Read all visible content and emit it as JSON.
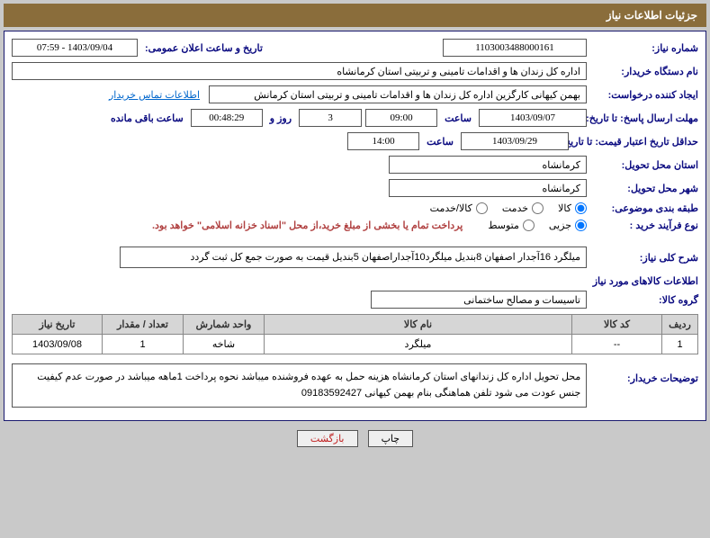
{
  "header": {
    "title": "جزئیات اطلاعات نیاز"
  },
  "fields": {
    "need_no_label": "شماره نیاز:",
    "need_no": "1103003488000161",
    "announce_label": "تاریخ و ساعت اعلان عمومی:",
    "announce_val": "1403/09/04 - 07:59",
    "buyer_label": "نام دستگاه خریدار:",
    "buyer_val": "اداره کل زندان ها و اقدامات تامینی و تربیتی استان کرمانشاه",
    "creator_label": "ایجاد کننده درخواست:",
    "creator_val": "بهمن کیهانی کارگزین اداره کل زندان ها و اقدامات تامینی و تربیتی استان کرمانش",
    "contact_link": "اطلاعات تماس خریدار",
    "resp_deadline_label": "مهلت ارسال پاسخ: تا تاریخ:",
    "resp_date": "1403/09/07",
    "time_label": "ساعت",
    "resp_time": "09:00",
    "days_val": "3",
    "days_and": "روز و",
    "remain_time": "00:48:29",
    "remain_label": "ساعت باقی مانده",
    "price_validity_label": "حداقل تاریخ اعتبار قیمت: تا تاریخ:",
    "price_date": "1403/09/29",
    "price_time": "14:00",
    "province_label": "استان محل تحویل:",
    "province_val": "کرمانشاه",
    "city_label": "شهر محل تحویل:",
    "city_val": "کرمانشاه",
    "category_label": "طبقه بندی موضوعی:",
    "cat_goods": "کالا",
    "cat_service": "خدمت",
    "cat_both": "کالا/خدمت",
    "process_label": "نوع فرآیند خرید :",
    "proc_small": "جزیی",
    "proc_medium": "متوسط",
    "payment_note": "پرداخت تمام یا بخشی از مبلغ خرید،از محل \"اسناد خزانه اسلامی\" خواهد بود.",
    "overview_label": "شرح کلی نیاز:",
    "overview_val": "میلگرد 16آجدار اصفهان 8بندیل میلگرد10آجداراصفهان 5بندیل قیمت به صورت جمع کل ثبت گردد",
    "items_section": "اطلاعات کالاهای مورد نیاز",
    "group_label": "گروه کالا:",
    "group_val": "تاسیسات و مصالح ساختمانی",
    "buyer_notes_label": "توضیحات خریدار:",
    "buyer_notes_val": "محل تحویل اداره کل زندانهای استان کرمانشاه هزینه حمل به عهده فروشنده میباشد نحوه پرداخت 1ماهه میباشد در صورت عدم کیفیت جنس عودت می شود تلفن هماهنگی بنام بهمن کیهانی  09183592427"
  },
  "table": {
    "headers": {
      "row": "ردیف",
      "code": "کد کالا",
      "name": "نام کالا",
      "unit": "واحد شمارش",
      "qty": "تعداد / مقدار",
      "date": "تاریخ نیاز"
    },
    "rows": [
      {
        "row": "1",
        "code": "--",
        "name": "میلگرد",
        "unit": "شاخه",
        "qty": "1",
        "date": "1403/09/08"
      }
    ]
  },
  "buttons": {
    "print": "چاپ",
    "back": "بازگشت"
  },
  "colors": {
    "header_bg": "#8a6d3b",
    "label_color": "#0a0a80",
    "body_bg": "#c9c9c9"
  }
}
